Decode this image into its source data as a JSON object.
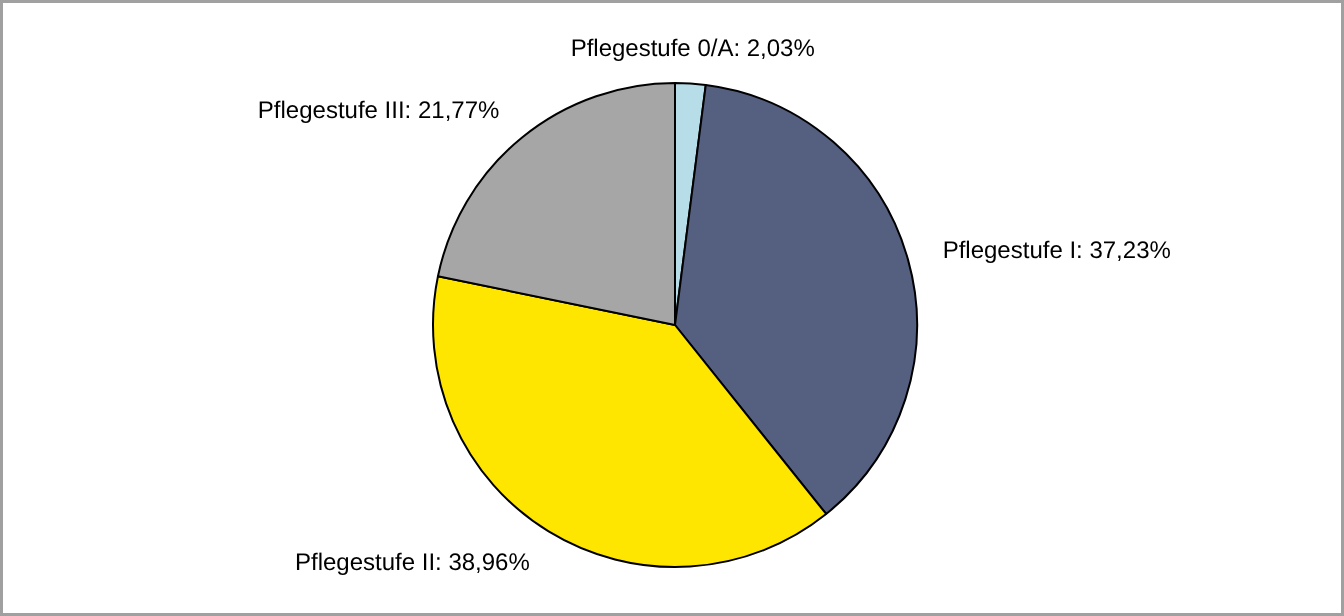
{
  "chart_data": {
    "type": "pie",
    "categories": [
      "Pflegestufe 0/A",
      "Pflegestufe I",
      "Pflegestufe II",
      "Pflegestufe III"
    ],
    "values": [
      2.03,
      37.23,
      38.96,
      21.77
    ],
    "colors": [
      "#b7dee8",
      "#556080",
      "#ffe600",
      "#a6a6a6"
    ],
    "value_labels": [
      "2,03%",
      "37,23%",
      "38,96%",
      "21,77%"
    ]
  }
}
